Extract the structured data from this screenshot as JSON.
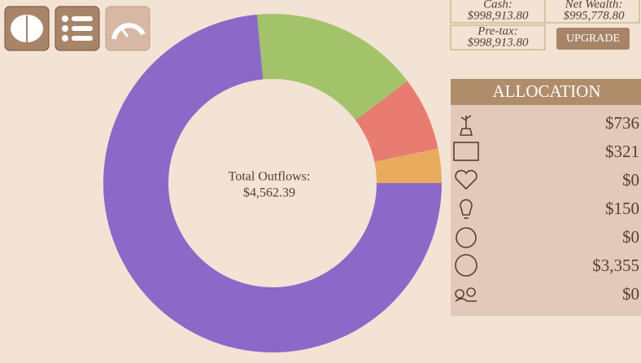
{
  "chart_data": {
    "type": "donut",
    "values": [
      150,
      321,
      736,
      3355
    ],
    "colors": [
      "#e9ac5e",
      "#e87c70",
      "#a3c36a",
      "#8a69c8"
    ],
    "start_angle": 0,
    "direction": "counterclockwise",
    "center_label": "Total Outflows:",
    "center_value": "$4,562.39"
  },
  "stats": {
    "cash_label": "Cash:",
    "cash": "$998,913.80",
    "net_label": "Net Wealth:",
    "net": "$995,778.80",
    "pretax_label": "Pre-tax:",
    "pretax": "$998,913.80",
    "button": "UPGRADE"
  },
  "allocation": {
    "title": "ALLOCATION",
    "rows": [
      "$736",
      "$321",
      "$0",
      "$150",
      "$0",
      "$3,355",
      "$0"
    ]
  }
}
